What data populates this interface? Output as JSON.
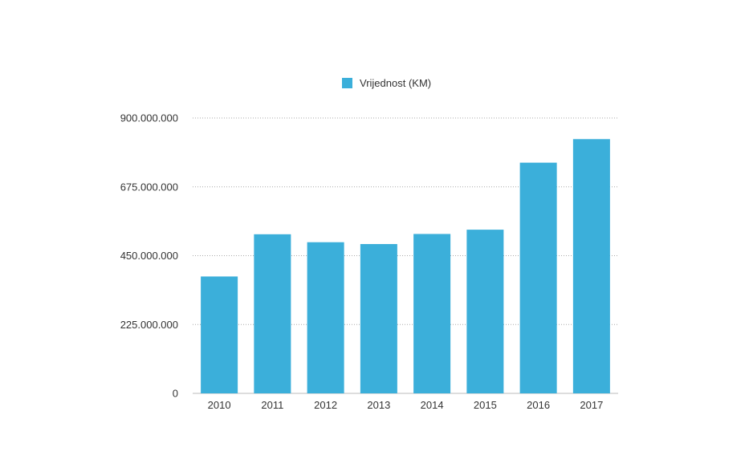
{
  "chart_data": {
    "type": "bar",
    "categories": [
      "2010",
      "2011",
      "2012",
      "2013",
      "2014",
      "2015",
      "2016",
      "2017"
    ],
    "series": [
      {
        "name": "Vrijednost (KM)",
        "values": [
          382000000,
          520000000,
          494000000,
          488000000,
          521000000,
          535000000,
          754000000,
          831000000
        ],
        "color": "#3BAFDA"
      }
    ],
    "title": "",
    "xlabel": "",
    "ylabel": "",
    "ylim": [
      0,
      900000000
    ],
    "yticks": [
      0,
      225000000,
      450000000,
      675000000,
      900000000
    ],
    "ytick_labels": [
      "0",
      "225.000.000",
      "450.000.000",
      "675.000.000",
      "900.000.000"
    ],
    "grid": true,
    "legend": "top-center"
  }
}
